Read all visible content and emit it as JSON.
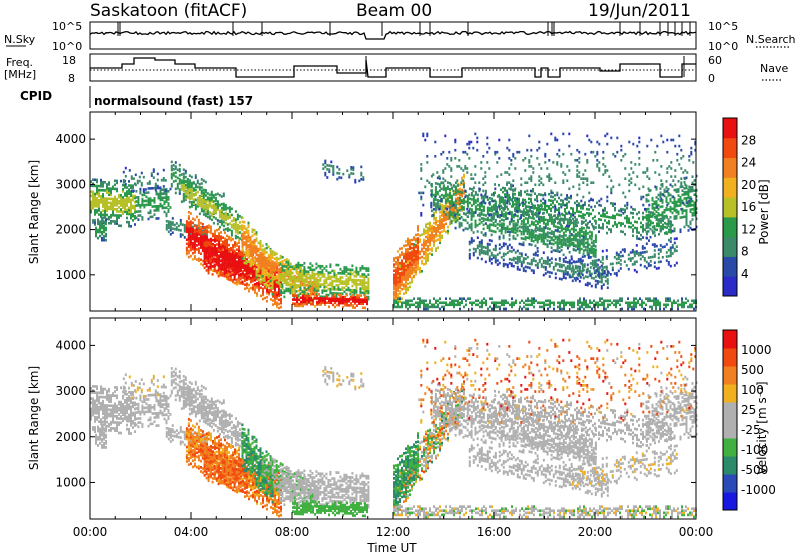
{
  "header": {
    "station": "Saskatoon (fitACF)",
    "beam": "Beam 00",
    "date": "19/Jun/2011"
  },
  "top_panels": {
    "nsky_label": "N.Sky",
    "nsky_ticks": [
      "10^5",
      "10^0"
    ],
    "nsearch_label": "N.Search",
    "nsearch_ticks": [
      "10^5",
      "10^0"
    ],
    "freq_label_1": "Freq.",
    "freq_label_2": "[MHz]",
    "freq_ticks": [
      "18",
      "8"
    ],
    "nave_label": "Nave",
    "nave_ticks": [
      "60",
      "0"
    ],
    "cpid_label": "CPID",
    "cpid_text": "normalsound (fast) 157"
  },
  "colors": {
    "power_scale": [
      "#2b2bc8",
      "#2a4aa8",
      "#3a8a6a",
      "#2a9a4a",
      "#b8c028",
      "#f0b020",
      "#f08020",
      "#f04a10",
      "#e81010"
    ],
    "velocity_scale": [
      "#1818e0",
      "#2a4ab8",
      "#2a8a6a",
      "#40b040",
      "#b0b0b0",
      "#b0b0b0",
      "#f0b020",
      "#f08020",
      "#f04a10",
      "#e81010"
    ]
  },
  "chart_data": [
    {
      "type": "heatmap",
      "name": "power",
      "xlabel": "",
      "ylabel": "Slant Range [km]",
      "y_ticks": [
        "1000",
        "2000",
        "3000",
        "4000"
      ],
      "ylim": [
        200,
        4600
      ],
      "colorbar_label": "Power [dB]",
      "colorbar_ticks": [
        "4",
        "8",
        "12",
        "16",
        "20",
        "24",
        "28"
      ]
    },
    {
      "type": "heatmap",
      "name": "velocity",
      "xlabel": "Time UT",
      "ylabel": "Slant Range [km]",
      "x_ticks": [
        "00:00",
        "04:00",
        "08:00",
        "12:00",
        "16:00",
        "20:00",
        "00:00"
      ],
      "y_ticks": [
        "1000",
        "2000",
        "3000",
        "4000"
      ],
      "ylim": [
        200,
        4600
      ],
      "colorbar_label": "Velocity [m s⁻¹]",
      "colorbar_ticks": [
        "1000",
        "500",
        "100",
        "25",
        "-25",
        "-100",
        "-500",
        "-1000"
      ]
    }
  ]
}
